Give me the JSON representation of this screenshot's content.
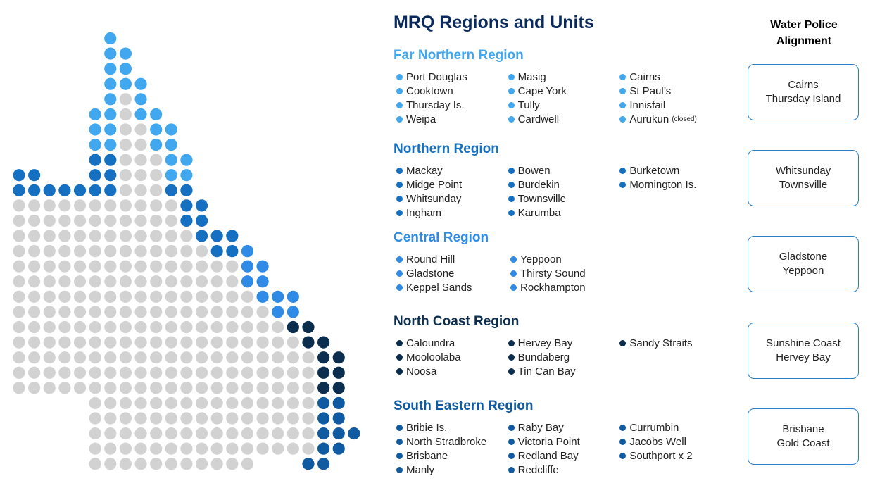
{
  "title": "MRQ Regions and Units",
  "alignment_heading": "Water Police Alignment",
  "regions": [
    {
      "name": "Far Northern Region",
      "color": "#41a7ef",
      "columns": [
        [
          "Port Douglas",
          "Cooktown",
          "Thursday Is.",
          "Weipa"
        ],
        [
          "Masig",
          "Cape York",
          "Tully",
          "Cardwell"
        ],
        [
          "Cairns",
          "St Paul’s",
          "Innisfail",
          "Aurukun"
        ]
      ],
      "note": {
        "unit": "Aurukun",
        "text": "(closed)"
      },
      "alignment": [
        "Cairns",
        "Thursday Island"
      ]
    },
    {
      "name": "Northern Region",
      "color": "#1570c2",
      "columns": [
        [
          "Mackay",
          "Midge Point",
          "Whitsunday",
          "Ingham"
        ],
        [
          "Bowen",
          "Burdekin",
          "Townsville",
          "Karumba"
        ],
        [
          "Burketown",
          "Mornington Is."
        ]
      ],
      "alignment": [
        "Whitsunday",
        "Townsville"
      ]
    },
    {
      "name": "Central Region",
      "color": "#2f8be6",
      "columns": [
        [
          "Round Hill",
          "Gladstone",
          "Keppel Sands"
        ],
        [
          "Yeppoon",
          "Thirsty Sound",
          "Rockhampton"
        ]
      ],
      "alignment": [
        "Gladstone",
        "Yeppoon"
      ]
    },
    {
      "name": "North Coast Region",
      "color": "#0b2e4f",
      "columns": [
        [
          "Caloundra",
          "Mooloolaba",
          "Noosa"
        ],
        [
          "Hervey Bay",
          "Bundaberg",
          "Tin Can Bay"
        ],
        [
          "Sandy Straits"
        ]
      ],
      "alignment": [
        "Sunshine Coast",
        "Hervey Bay"
      ]
    },
    {
      "name": "South Eastern Region",
      "color": "#0f5aa0",
      "columns": [
        [
          "Bribie Is.",
          "North Stradbroke",
          "Brisbane",
          "Manly"
        ],
        [
          "Raby Bay",
          "Victoria Point",
          "Redland Bay",
          "Redcliffe"
        ],
        [
          "Currumbin",
          "Jacobs Well",
          "Southport x 2"
        ]
      ],
      "alignment": [
        "Brisbane",
        "Gold Coast"
      ]
    }
  ]
}
